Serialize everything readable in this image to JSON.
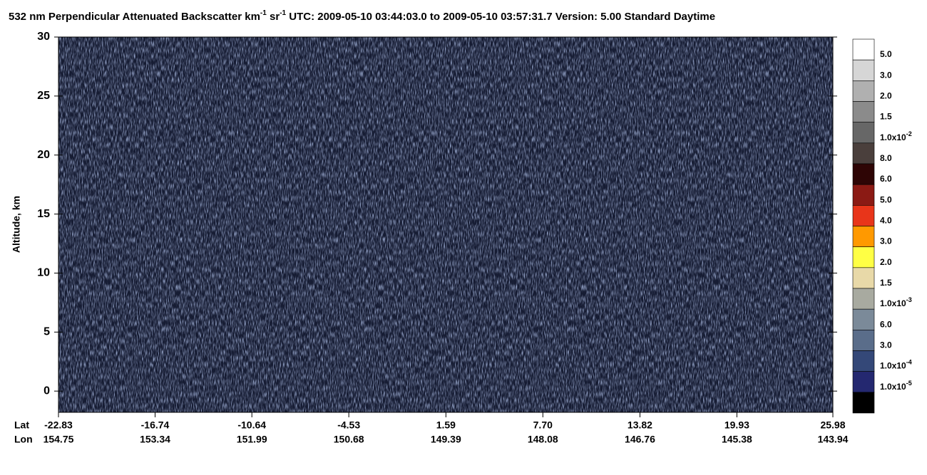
{
  "chart_data": {
    "type": "curtain",
    "title": [
      "532 nm Perpendicular Attenuated Backscatter km",
      "-1",
      " sr",
      "-1",
      "  UTC: 2009-05-10 03:44:03.0 to 2009-05-10 03:57:31.7  Version: 5.00 Standard Daytime"
    ],
    "ylabel": "Altitude, km",
    "ylim": [
      -1.8,
      30
    ],
    "yticks": [
      0,
      5,
      10,
      15,
      20,
      25,
      30
    ],
    "xlabel": "Lat",
    "xlim": [
      -22.83,
      25.98
    ],
    "xticks": [
      -22.83,
      -16.74,
      -10.64,
      -4.53,
      1.59,
      {
        "value": 7.7,
        "label": "7.70"
      },
      13.82,
      19.93,
      25.98
    ],
    "x2label": "Lon",
    "x2_labels": [
      154.75,
      153.34,
      151.99,
      150.68,
      149.39,
      148.08,
      146.76,
      145.38,
      143.94
    ],
    "colorbar": {
      "colors": [
        "#ffffff",
        "#d6d6d6",
        "#b0b0b0",
        "#8b8b8b",
        "#676767",
        "#4a3f3c",
        "#2e0505",
        "#8b1a14",
        "#e8351a",
        "#ff9900",
        "#ffff44",
        "#e8d9a8",
        "#a8aaa0",
        "#7b8a99",
        "#5a6d8a",
        "#344878",
        "#242870",
        "#000000"
      ],
      "labels": [
        {
          "text": "5.0"
        },
        {
          "text": "3.0"
        },
        {
          "text": "2.0"
        },
        {
          "text": "1.5"
        },
        {
          "text": "1.0x10",
          "exp": "-2"
        },
        {
          "text": "8.0"
        },
        {
          "text": "6.0"
        },
        {
          "text": "5.0"
        },
        {
          "text": "4.0"
        },
        {
          "text": "3.0"
        },
        {
          "text": "2.0"
        },
        {
          "text": "1.5"
        },
        {
          "text": "1.0x10",
          "exp": "-3"
        },
        {
          "text": "6.0"
        },
        {
          "text": "3.0"
        },
        {
          "text": "1.0x10",
          "exp": "-4"
        },
        {
          "text": "1.0x10",
          "exp": "-5"
        }
      ]
    }
  }
}
